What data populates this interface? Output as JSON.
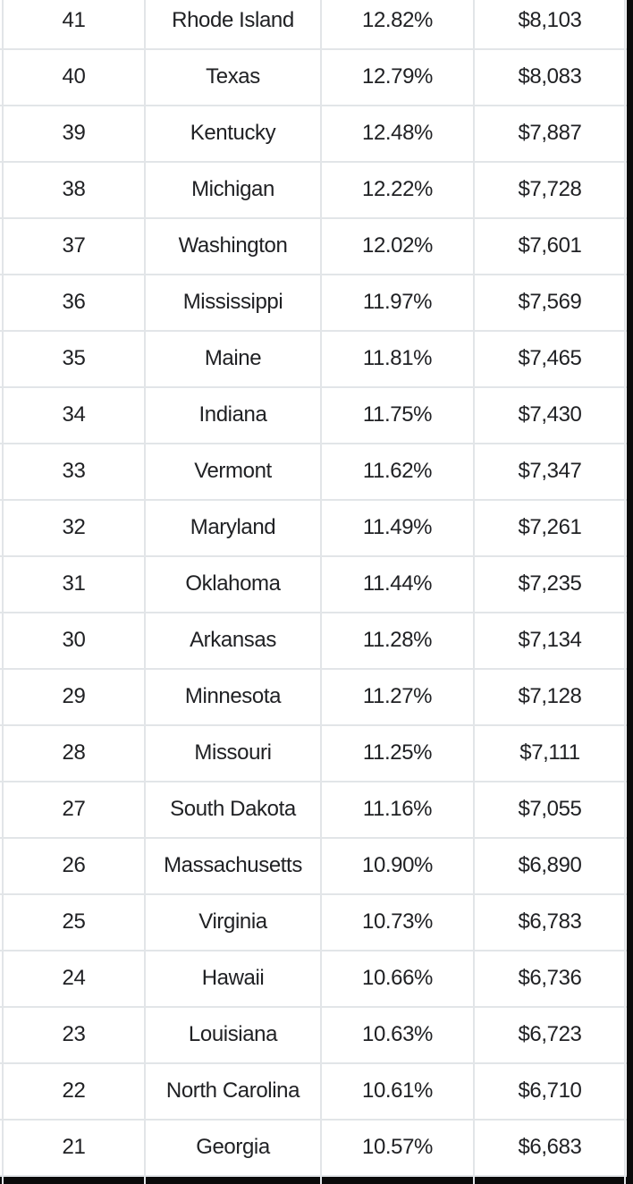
{
  "colors": {
    "background": "#ffffff",
    "grid_line": "#e2e5e8",
    "text": "#202124",
    "edge_bar": "#0a0a0a"
  },
  "table": {
    "rows": [
      {
        "rank": "41",
        "state": "Rhode Island",
        "percent": "12.82%",
        "amount": "$8,103"
      },
      {
        "rank": "40",
        "state": "Texas",
        "percent": "12.79%",
        "amount": "$8,083"
      },
      {
        "rank": "39",
        "state": "Kentucky",
        "percent": "12.48%",
        "amount": "$7,887"
      },
      {
        "rank": "38",
        "state": "Michigan",
        "percent": "12.22%",
        "amount": "$7,728"
      },
      {
        "rank": "37",
        "state": "Washington",
        "percent": "12.02%",
        "amount": "$7,601"
      },
      {
        "rank": "36",
        "state": "Mississippi",
        "percent": "11.97%",
        "amount": "$7,569"
      },
      {
        "rank": "35",
        "state": "Maine",
        "percent": "11.81%",
        "amount": "$7,465"
      },
      {
        "rank": "34",
        "state": "Indiana",
        "percent": "11.75%",
        "amount": "$7,430"
      },
      {
        "rank": "33",
        "state": "Vermont",
        "percent": "11.62%",
        "amount": "$7,347"
      },
      {
        "rank": "32",
        "state": "Maryland",
        "percent": "11.49%",
        "amount": "$7,261"
      },
      {
        "rank": "31",
        "state": "Oklahoma",
        "percent": "11.44%",
        "amount": "$7,235"
      },
      {
        "rank": "30",
        "state": "Arkansas",
        "percent": "11.28%",
        "amount": "$7,134"
      },
      {
        "rank": "29",
        "state": "Minnesota",
        "percent": "11.27%",
        "amount": "$7,128"
      },
      {
        "rank": "28",
        "state": "Missouri",
        "percent": "11.25%",
        "amount": "$7,111"
      },
      {
        "rank": "27",
        "state": "South Dakota",
        "percent": "11.16%",
        "amount": "$7,055"
      },
      {
        "rank": "26",
        "state": "Massachusetts",
        "percent": "10.90%",
        "amount": "$6,890"
      },
      {
        "rank": "25",
        "state": "Virginia",
        "percent": "10.73%",
        "amount": "$6,783"
      },
      {
        "rank": "24",
        "state": "Hawaii",
        "percent": "10.66%",
        "amount": "$6,736"
      },
      {
        "rank": "23",
        "state": "Louisiana",
        "percent": "10.63%",
        "amount": "$6,723"
      },
      {
        "rank": "22",
        "state": "North Carolina",
        "percent": "10.61%",
        "amount": "$6,710"
      },
      {
        "rank": "21",
        "state": "Georgia",
        "percent": "10.57%",
        "amount": "$6,683"
      }
    ]
  },
  "chart_data": {
    "type": "table",
    "columns": [
      "rank",
      "state",
      "percent",
      "amount"
    ],
    "rows": [
      [
        "41",
        "Rhode Island",
        "12.82%",
        "$8,103"
      ],
      [
        "40",
        "Texas",
        "12.79%",
        "$8,083"
      ],
      [
        "39",
        "Kentucky",
        "12.48%",
        "$7,887"
      ],
      [
        "38",
        "Michigan",
        "12.22%",
        "$7,728"
      ],
      [
        "37",
        "Washington",
        "12.02%",
        "$7,601"
      ],
      [
        "36",
        "Mississippi",
        "11.97%",
        "$7,569"
      ],
      [
        "35",
        "Maine",
        "11.81%",
        "$7,465"
      ],
      [
        "34",
        "Indiana",
        "11.75%",
        "$7,430"
      ],
      [
        "33",
        "Vermont",
        "11.62%",
        "$7,347"
      ],
      [
        "32",
        "Maryland",
        "11.49%",
        "$7,261"
      ],
      [
        "31",
        "Oklahoma",
        "11.44%",
        "$7,235"
      ],
      [
        "30",
        "Arkansas",
        "11.28%",
        "$7,134"
      ],
      [
        "29",
        "Minnesota",
        "11.27%",
        "$7,128"
      ],
      [
        "28",
        "Missouri",
        "11.25%",
        "$7,111"
      ],
      [
        "27",
        "South Dakota",
        "11.16%",
        "$7,055"
      ],
      [
        "26",
        "Massachusetts",
        "10.90%",
        "$6,890"
      ],
      [
        "25",
        "Virginia",
        "10.73%",
        "$6,783"
      ],
      [
        "24",
        "Hawaii",
        "10.66%",
        "$6,736"
      ],
      [
        "23",
        "Louisiana",
        "10.63%",
        "$6,723"
      ],
      [
        "22",
        "North Carolina",
        "10.61%",
        "$6,710"
      ],
      [
        "21",
        "Georgia",
        "10.57%",
        "$6,683"
      ]
    ]
  }
}
